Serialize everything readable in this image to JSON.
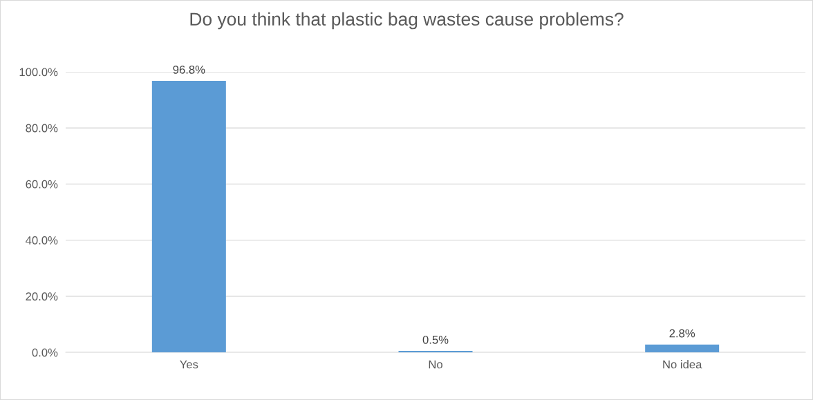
{
  "chart_data": {
    "type": "bar",
    "title": "Do you think that plastic bag wastes cause problems?",
    "categories": [
      "Yes",
      "No",
      "No idea"
    ],
    "values": [
      96.8,
      0.5,
      2.8
    ],
    "value_labels": [
      "96.8%",
      "0.5%",
      "2.8%"
    ],
    "color": "#5b9bd5",
    "ylim": [
      0,
      100
    ],
    "yticks": [
      {
        "value": 0,
        "label": "0.0%"
      },
      {
        "value": 20,
        "label": "20.0%"
      },
      {
        "value": 40,
        "label": "40.0%"
      },
      {
        "value": 60,
        "label": "60.0%"
      },
      {
        "value": 80,
        "label": "80.0%"
      },
      {
        "value": 100,
        "label": "100.0%"
      }
    ],
    "grid": "y"
  }
}
